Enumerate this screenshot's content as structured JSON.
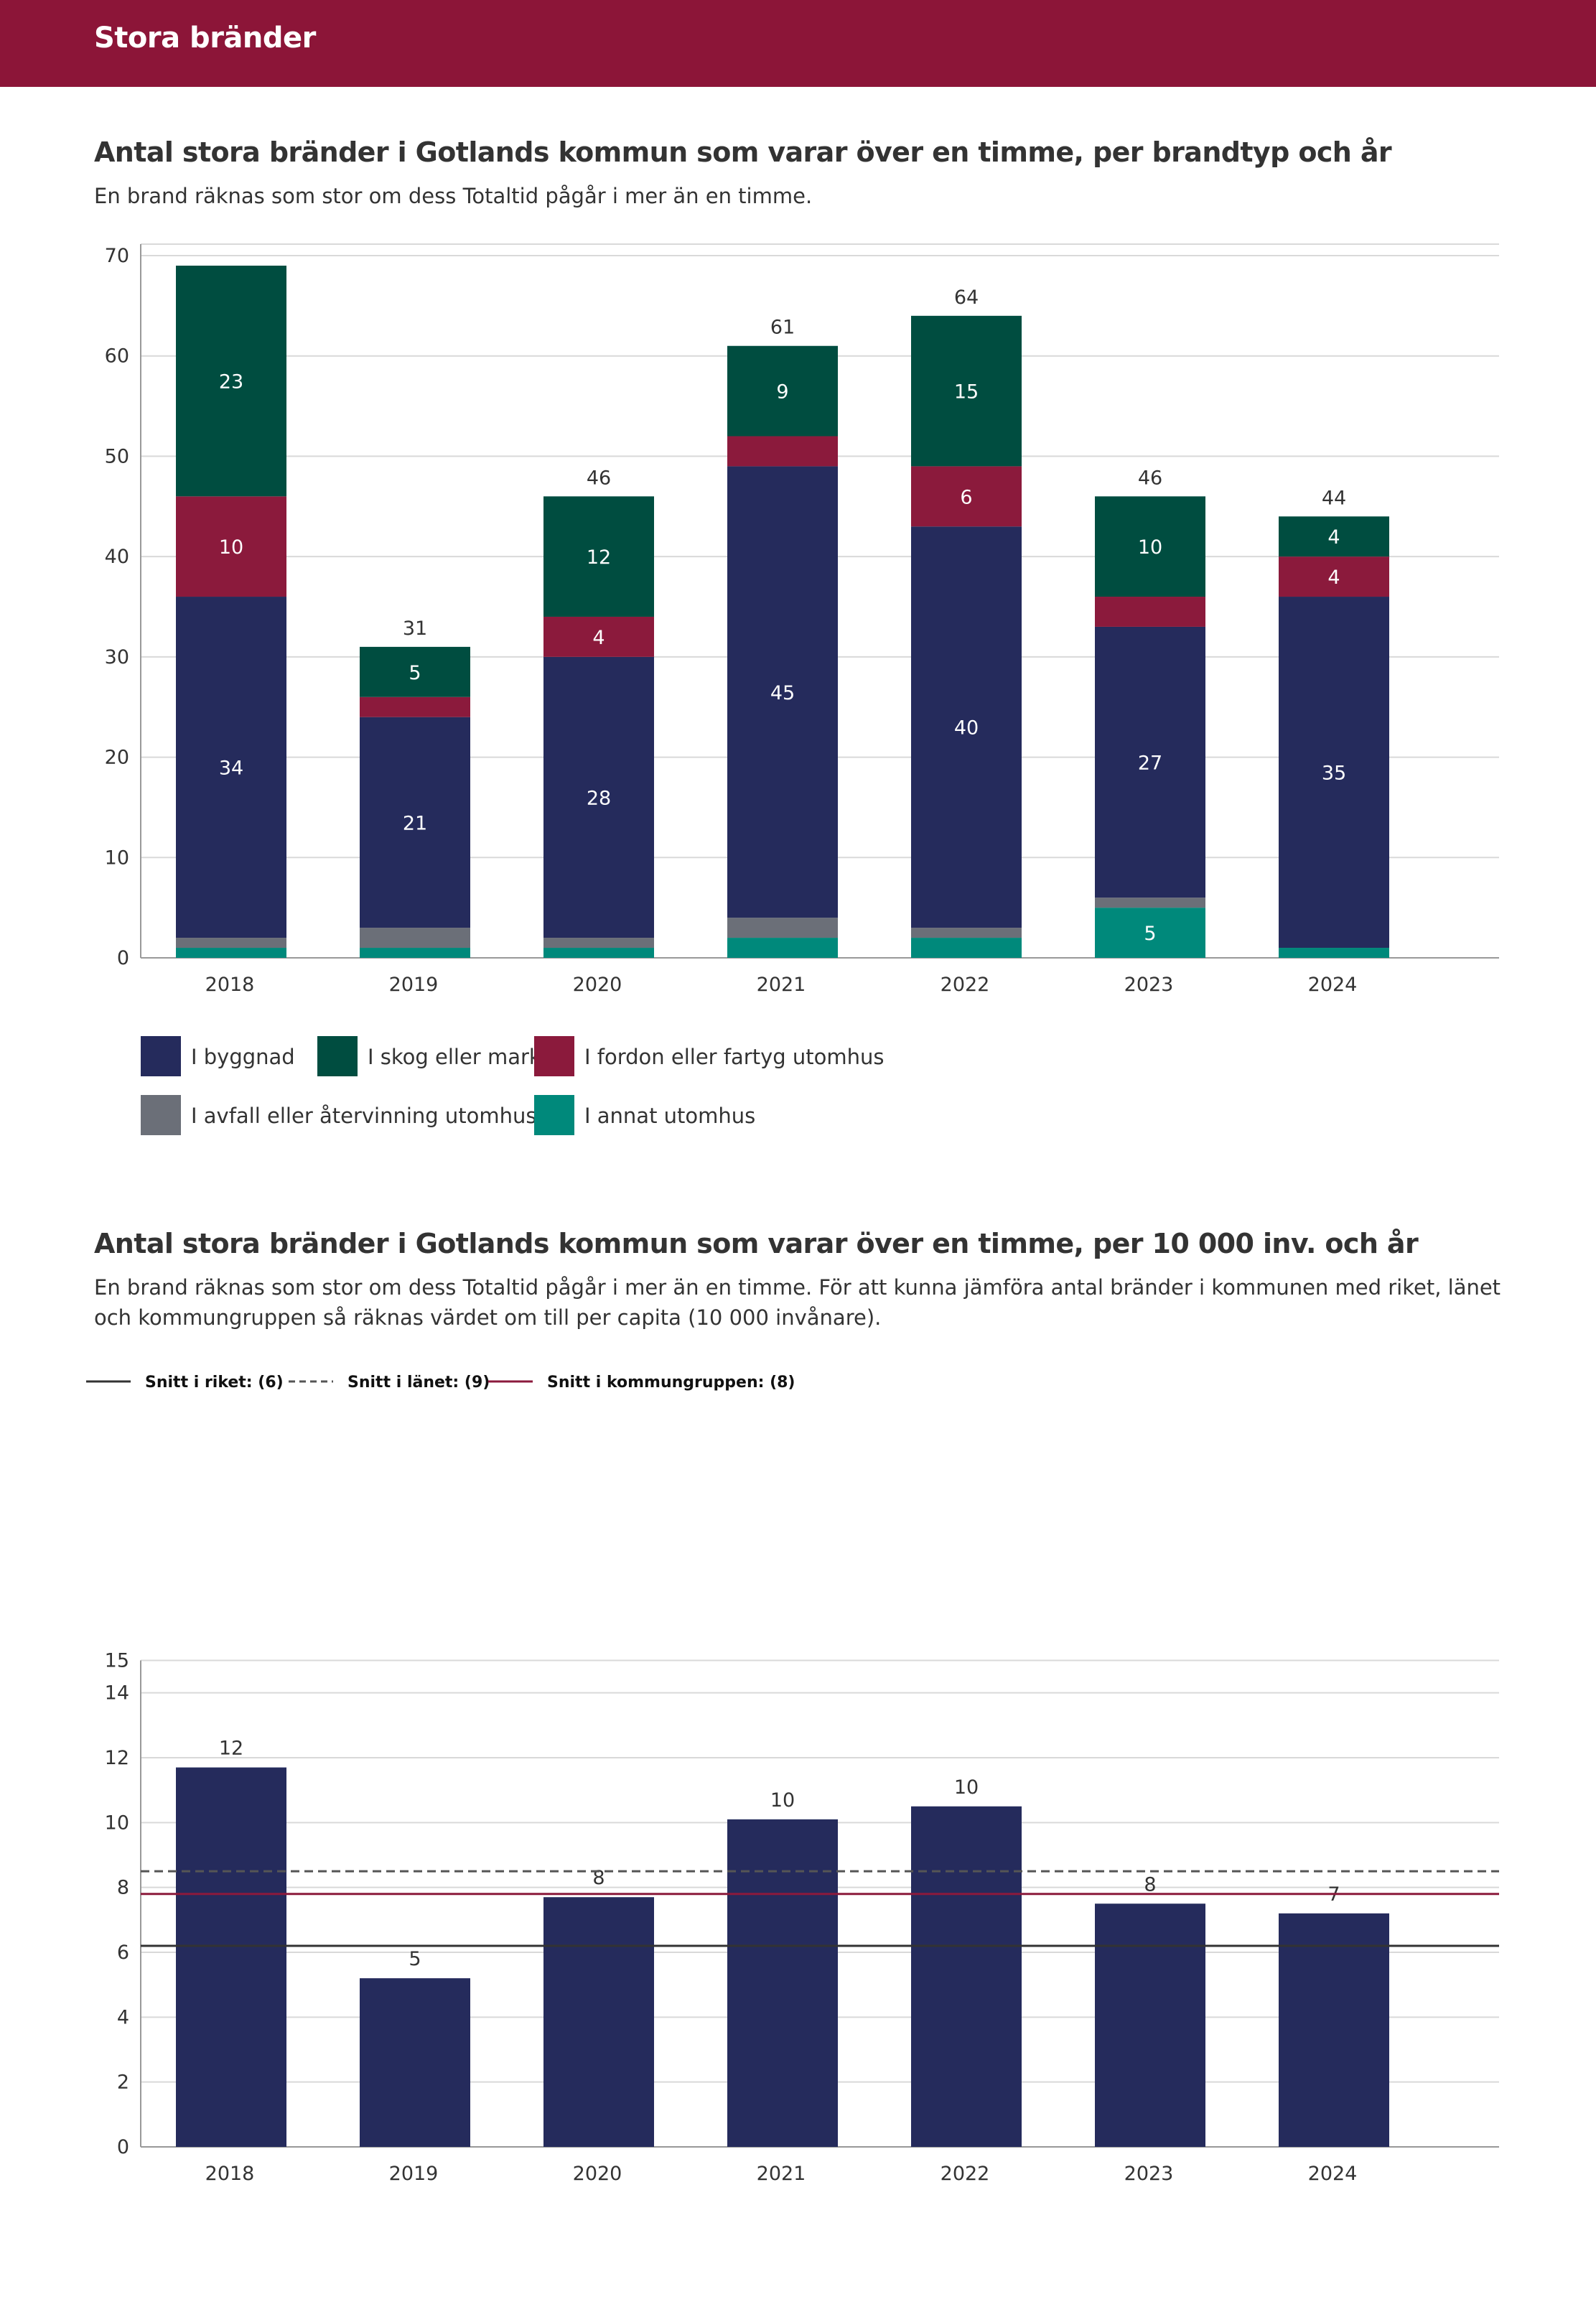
{
  "page": {
    "section_title": "Stora bränder"
  },
  "colors": {
    "banner": "#8c1538",
    "byggnad": "#252b5c",
    "skog": "#004d40",
    "fordon": "#8b1a3c",
    "avfall": "#6b6f78",
    "annat": "#00897b",
    "grid": "#d9d9d9",
    "axis": "#999999",
    "riket_line": "#333333",
    "lanet_line": "#555555",
    "kommungrupp_line": "#8b1a3c"
  },
  "chart_data": [
    {
      "type": "bar",
      "stacked": true,
      "title": "Antal stora bränder i Gotlands kommun som varar över en timme, per brandtyp och år",
      "subtitle": "En brand räknas som stor om dess Totaltid pågår i mer än en timme.",
      "categories": [
        "2018",
        "2019",
        "2020",
        "2021",
        "2022",
        "2023",
        "2024"
      ],
      "ylim": [
        0,
        70
      ],
      "yticks": [
        0,
        10,
        20,
        30,
        40,
        50,
        60,
        70
      ],
      "grid": true,
      "legend_position": "bottom",
      "series": [
        {
          "name": "I annat utomhus",
          "color_key": "annat",
          "values": [
            1,
            1,
            1,
            2,
            2,
            5,
            1
          ]
        },
        {
          "name": "I avfall eller återvinning utomhus",
          "color_key": "avfall",
          "values": [
            1,
            2,
            1,
            2,
            1,
            1,
            0
          ]
        },
        {
          "name": "I byggnad",
          "color_key": "byggnad",
          "values": [
            34,
            21,
            28,
            45,
            40,
            27,
            35
          ]
        },
        {
          "name": "I fordon eller fartyg utomhus",
          "color_key": "fordon",
          "values": [
            10,
            2,
            4,
            3,
            6,
            3,
            4
          ]
        },
        {
          "name": "I skog eller mark",
          "color_key": "skog",
          "values": [
            23,
            5,
            12,
            9,
            15,
            10,
            4
          ]
        }
      ],
      "segment_labels": {
        "annat": [
          "",
          "",
          "",
          "",
          "",
          "5",
          ""
        ],
        "avfall": [
          "",
          "",
          "",
          "",
          "",
          "",
          ""
        ],
        "byggnad": [
          "34",
          "21",
          "28",
          "45",
          "40",
          "27",
          "35"
        ],
        "fordon": [
          "10",
          "",
          "4",
          "",
          "6",
          "",
          "4"
        ],
        "skog": [
          "23",
          "5",
          "12",
          "9",
          "15",
          "10",
          "4"
        ]
      },
      "totals": [
        "",
        "31",
        "46",
        "61",
        "64",
        "46",
        "44"
      ],
      "legend": [
        {
          "name": "I byggnad",
          "color_key": "byggnad"
        },
        {
          "name": "I skog eller mark",
          "color_key": "skog"
        },
        {
          "name": "I fordon eller fartyg utomhus",
          "color_key": "fordon"
        },
        {
          "name": "I avfall eller återvinning utomhus",
          "color_key": "avfall"
        },
        {
          "name": "I annat utomhus",
          "color_key": "annat"
        }
      ]
    },
    {
      "type": "bar",
      "title": "Antal stora bränder i Gotlands kommun som varar över en timme, per 10 000 inv. och år",
      "subtitle": "En brand räknas som stor om dess Totaltid pågår i mer än en timme. För att kunna jämföra antal bränder i kommunen med riket, länet och kommungruppen så räknas värdet om till per capita (10 000 invånare).",
      "categories": [
        "2018",
        "2019",
        "2020",
        "2021",
        "2022",
        "2023",
        "2024"
      ],
      "values": [
        11.7,
        5.2,
        7.7,
        10.1,
        10.5,
        7.5,
        7.2
      ],
      "value_labels": [
        "12",
        "5",
        "8",
        "10",
        "10",
        "8",
        "7"
      ],
      "ylim": [
        0,
        15
      ],
      "yticks": [
        0,
        2,
        4,
        6,
        8,
        10,
        12,
        14,
        15
      ],
      "grid": true,
      "reference_lines": [
        {
          "label": "Snitt i riket: (6)",
          "value": 6.2,
          "style": "solid",
          "color_key": "riket_line"
        },
        {
          "label": "Snitt i länet: (9)",
          "value": 8.5,
          "style": "dashed",
          "color_key": "lanet_line"
        },
        {
          "label": "Snitt i kommungruppen: (8)",
          "value": 7.8,
          "style": "solid",
          "color_key": "kommungrupp_line"
        }
      ]
    }
  ]
}
